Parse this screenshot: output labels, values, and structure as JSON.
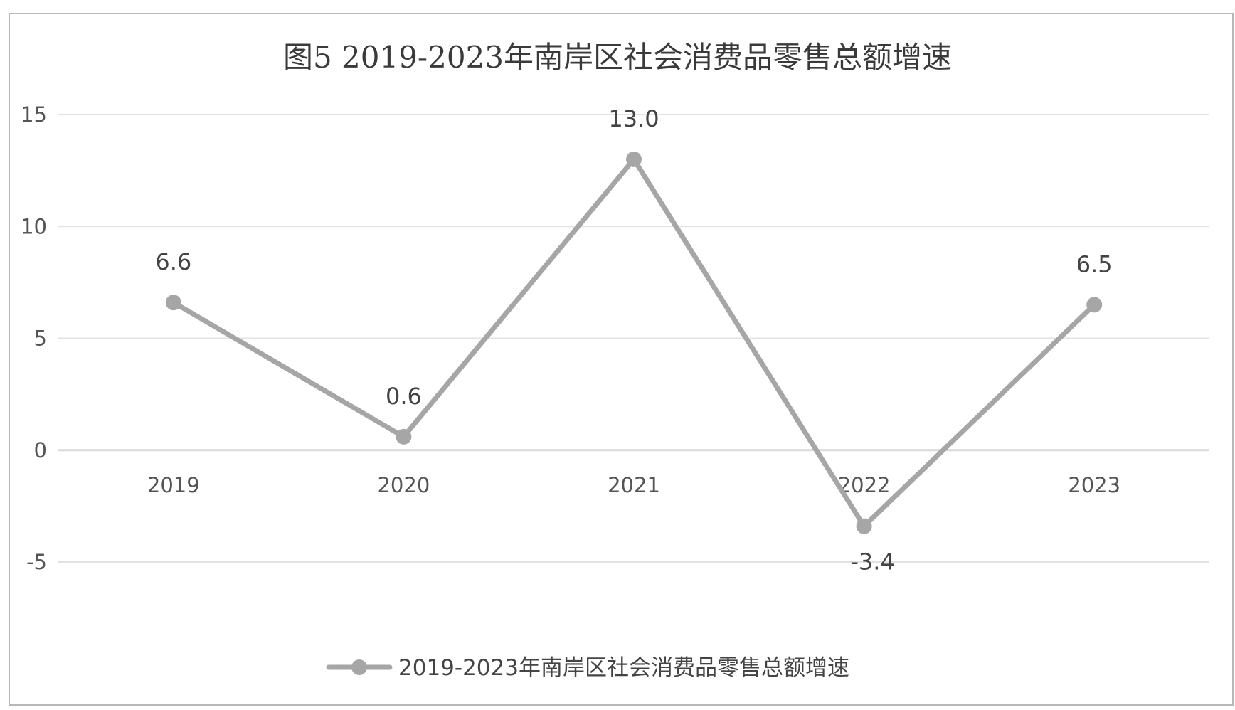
{
  "chart_data": {
    "type": "line",
    "title": "图5 2019-2023年南岸区社会消费品零售总额增速",
    "categories": [
      "2019",
      "2020",
      "2021",
      "2022",
      "2023"
    ],
    "series": [
      {
        "name": "2019-2023年南岸区社会消费品零售总额增速",
        "values": [
          6.6,
          0.6,
          13.0,
          -3.4,
          6.5
        ],
        "labels": [
          "6.6",
          "0.6",
          "13.0",
          "-3.4",
          "6.5"
        ]
      }
    ],
    "ylim": [
      -5,
      15
    ],
    "yticks": [
      15,
      10,
      5,
      0,
      -5
    ],
    "grid": true,
    "legend": "bottom",
    "colors": {
      "line": "#a6a6a6",
      "grid": "#e3e3e3",
      "axis": "#d9d9d9"
    }
  }
}
